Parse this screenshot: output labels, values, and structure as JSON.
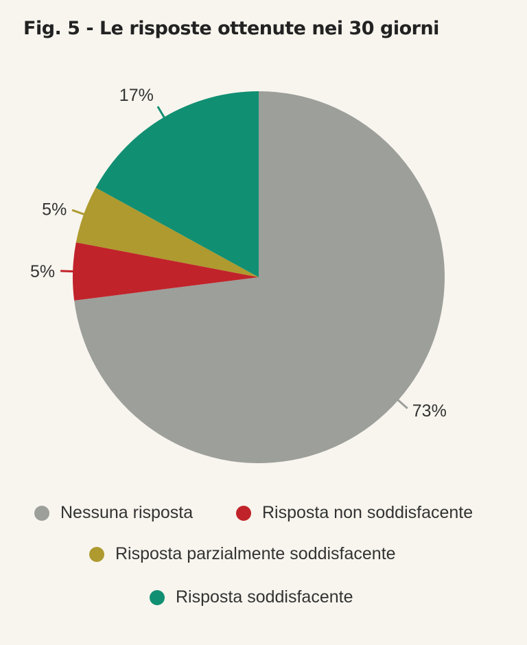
{
  "title": "Fig. 5 - Le risposte ottenute nei 30 giorni",
  "chart_data": {
    "type": "pie",
    "title": "Fig. 5 - Le risposte ottenute nei 30 giorni",
    "slices": [
      {
        "name": "Nessuna risposta",
        "value": 73,
        "label": "73%",
        "color": "#9d9f9b"
      },
      {
        "name": "Risposta non soddisfacente",
        "value": 5,
        "label": "5%",
        "color": "#c1232a"
      },
      {
        "name": "Risposta parzialmente soddisfacente",
        "value": 5,
        "label": "5%",
        "color": "#ae9a2f"
      },
      {
        "name": "Risposta soddisfacente",
        "value": 17,
        "label": "17%",
        "color": "#118f72"
      }
    ],
    "legend_position": "bottom"
  }
}
